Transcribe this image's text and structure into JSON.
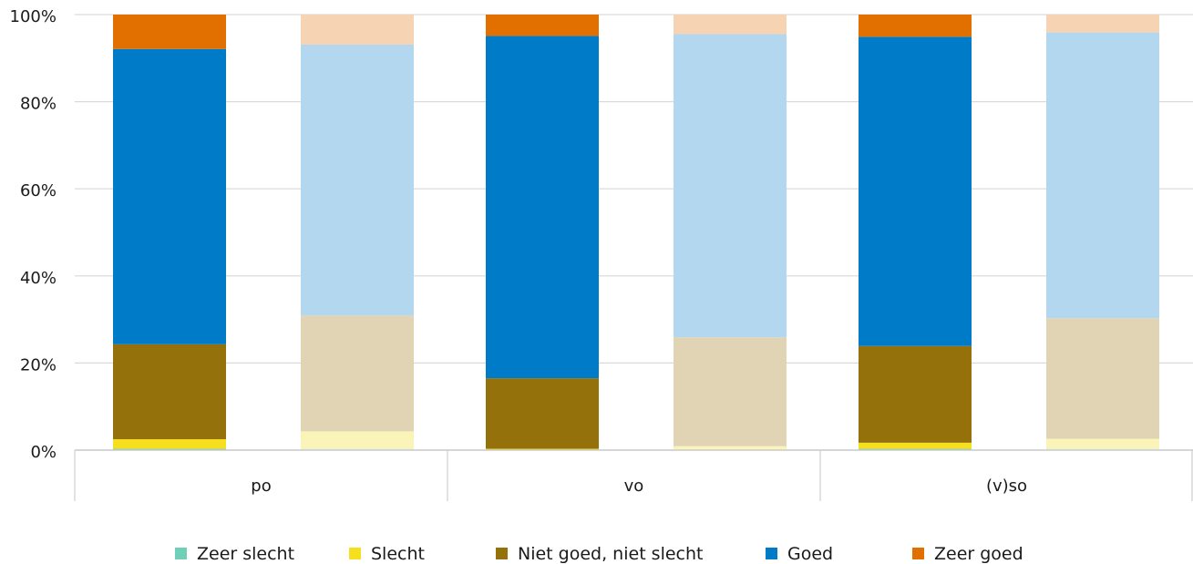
{
  "chart_data": {
    "type": "bar",
    "stacked": true,
    "percent": true,
    "categories": [
      "po",
      "vo",
      "(v)so"
    ],
    "bars_per_category": 2,
    "yticks": [
      "0%",
      "20%",
      "40%",
      "60%",
      "80%",
      "100%"
    ],
    "ylim": [
      0,
      100
    ],
    "grid": true,
    "legend_position": "bottom",
    "series": [
      {
        "name": "Zeer slecht",
        "color": "#6fcfb7",
        "light_color": "#d3f0e8",
        "values": [
          [
            0.3,
            0.3
          ],
          [
            0,
            0
          ],
          [
            0.3,
            0.3
          ]
        ]
      },
      {
        "name": "Slecht",
        "color": "#f5df1f",
        "light_color": "#fbf4b8",
        "values": [
          [
            2.2,
            4.0
          ],
          [
            0.3,
            0.9
          ],
          [
            1.4,
            2.3
          ]
        ]
      },
      {
        "name": "Niet goed, niet slecht",
        "color": "#94710a",
        "light_color": "#e0d4b4",
        "values": [
          [
            21.8,
            26.6
          ],
          [
            16.2,
            25.0
          ],
          [
            22.2,
            27.7
          ]
        ]
      },
      {
        "name": "Goed",
        "color": "#007bc7",
        "light_color": "#b3d7ee",
        "values": [
          [
            67.8,
            62.2
          ],
          [
            78.6,
            69.6
          ],
          [
            71.0,
            65.6
          ]
        ]
      },
      {
        "name": "Zeer goed",
        "color": "#e17000",
        "light_color": "#f6d4b3",
        "values": [
          [
            7.9,
            6.9
          ],
          [
            4.9,
            4.5
          ],
          [
            5.1,
            4.1
          ]
        ]
      }
    ]
  }
}
